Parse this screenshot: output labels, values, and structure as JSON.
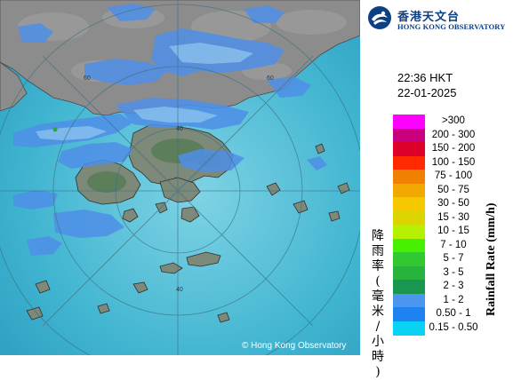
{
  "logo": {
    "name_zh": "香港天文台",
    "name_en": "HONG KONG OBSERVATORY",
    "brand_color": "#0b3f86",
    "icon": "observatory-logo-icon"
  },
  "timestamp": {
    "time": "22:36 HKT",
    "date": "22-01-2025"
  },
  "legend": {
    "title_zh": "降雨率(毫米/小時)",
    "title_en": "Rainfall Rate (mm/h)",
    "items": [
      {
        "label": ">300",
        "color": "#ff00ff"
      },
      {
        "label": "200 - 300",
        "color": "#c8007d"
      },
      {
        "label": "150 - 200",
        "color": "#dd0028"
      },
      {
        "label": "100 - 150",
        "color": "#ff2a00"
      },
      {
        "label": "75 - 100",
        "color": "#f08000"
      },
      {
        "label": "50 - 75",
        "color": "#f2a800"
      },
      {
        "label": "30 - 50",
        "color": "#f5c800"
      },
      {
        "label": "15 - 30",
        "color": "#dcd400"
      },
      {
        "label": "10 - 15",
        "color": "#b4f000"
      },
      {
        "label": "7 - 10",
        "color": "#46f000"
      },
      {
        "label": "5 - 7",
        "color": "#32c832"
      },
      {
        "label": "3 - 5",
        "color": "#28b43c"
      },
      {
        "label": "2 - 3",
        "color": "#1a9650"
      },
      {
        "label": "1 - 2",
        "color": "#4d96f0"
      },
      {
        "label": "0.50 - 1",
        "color": "#1e82f0"
      },
      {
        "label": "0.15 - 0.50",
        "color": "#0ad2f5"
      }
    ]
  },
  "map": {
    "range_ring_labels": [
      "60",
      "40",
      "40",
      "60"
    ],
    "copyright": "© Hong Kong Observatory",
    "sea_color": "#3fb7d1",
    "land_color": "#8a8a8a"
  }
}
